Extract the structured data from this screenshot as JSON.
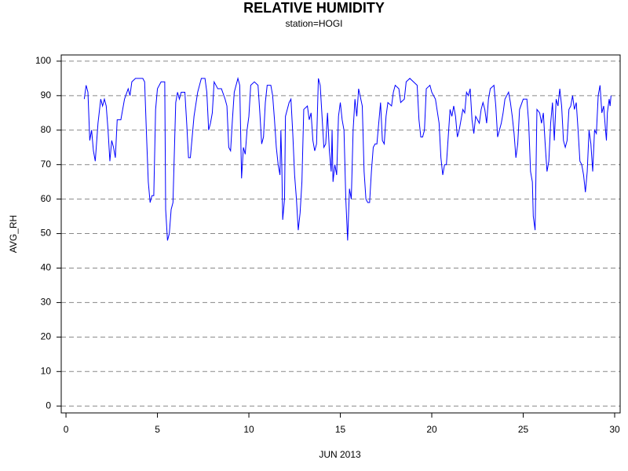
{
  "chart_data": {
    "type": "line",
    "title": "RELATIVE HUMIDITY",
    "subtitle": "station=HOGI",
    "x_label": "JUN 2013",
    "y_label": "AVG_RH",
    "x": [
      1.0,
      1.1,
      1.2,
      1.3,
      1.4,
      1.5,
      1.6,
      1.75,
      1.9,
      2.0,
      2.1,
      2.2,
      2.3,
      2.4,
      2.5,
      2.6,
      2.7,
      2.8,
      3.0,
      3.2,
      3.4,
      3.5,
      3.6,
      3.8,
      4.0,
      4.2,
      4.3,
      4.4,
      4.5,
      4.6,
      4.7,
      4.8,
      4.9,
      5.0,
      5.2,
      5.4,
      5.45,
      5.55,
      5.65,
      5.75,
      5.85,
      6.0,
      6.1,
      6.2,
      6.3,
      6.5,
      6.6,
      6.7,
      6.8,
      6.9,
      7.0,
      7.2,
      7.4,
      7.6,
      7.7,
      7.8,
      7.9,
      8.0,
      8.1,
      8.3,
      8.5,
      8.7,
      8.8,
      8.9,
      9.0,
      9.1,
      9.2,
      9.4,
      9.5,
      9.6,
      9.7,
      9.8,
      9.9,
      10.0,
      10.1,
      10.3,
      10.5,
      10.6,
      10.7,
      10.8,
      10.9,
      11.0,
      11.2,
      11.3,
      11.4,
      11.5,
      11.6,
      11.7,
      11.75,
      11.8,
      11.85,
      11.95,
      12.0,
      12.2,
      12.3,
      12.4,
      12.5,
      12.6,
      12.7,
      12.8,
      12.9,
      13.0,
      13.2,
      13.3,
      13.4,
      13.5,
      13.6,
      13.7,
      13.8,
      13.9,
      14.0,
      14.1,
      14.2,
      14.3,
      14.4,
      14.5,
      14.55,
      14.6,
      14.7,
      14.8,
      14.9,
      15.0,
      15.1,
      15.2,
      15.3,
      15.4,
      15.5,
      15.6,
      15.7,
      15.8,
      15.9,
      16.0,
      16.2,
      16.3,
      16.4,
      16.5,
      16.6,
      16.7,
      16.8,
      16.9,
      17.0,
      17.2,
      17.3,
      17.4,
      17.5,
      17.6,
      17.8,
      17.9,
      18.0,
      18.2,
      18.3,
      18.5,
      18.6,
      18.8,
      19.0,
      19.2,
      19.3,
      19.4,
      19.5,
      19.6,
      19.7,
      19.9,
      20.0,
      20.2,
      20.4,
      20.5,
      20.6,
      20.7,
      20.8,
      20.9,
      21.0,
      21.1,
      21.2,
      21.3,
      21.4,
      21.5,
      21.6,
      21.7,
      21.8,
      21.9,
      22.0,
      22.1,
      22.2,
      22.3,
      22.4,
      22.6,
      22.7,
      22.8,
      22.9,
      23.0,
      23.1,
      23.2,
      23.4,
      23.5,
      23.6,
      23.7,
      23.8,
      23.9,
      24.0,
      24.2,
      24.3,
      24.4,
      24.5,
      24.6,
      24.7,
      24.8,
      25.0,
      25.2,
      25.3,
      25.4,
      25.5,
      25.55,
      25.65,
      25.75,
      25.9,
      26.0,
      26.1,
      26.2,
      26.3,
      26.4,
      26.5,
      26.6,
      26.7,
      26.8,
      26.9,
      27.0,
      27.1,
      27.2,
      27.3,
      27.4,
      27.5,
      27.6,
      27.7,
      27.8,
      27.9,
      28.0,
      28.1,
      28.2,
      28.3,
      28.4,
      28.5,
      28.6,
      28.7,
      28.8,
      28.9,
      29.0,
      29.1,
      29.2,
      29.3,
      29.4,
      29.5,
      29.55,
      29.6,
      29.7,
      29.75,
      29.8
    ],
    "series": [
      {
        "name": "AVG_RH",
        "color": "#0000ff",
        "values": [
          89,
          93,
          91,
          77,
          80,
          74,
          71,
          82,
          89,
          87,
          89,
          87,
          80,
          71,
          77,
          75,
          72,
          83,
          83,
          89,
          92,
          90,
          94,
          95,
          95,
          95,
          94,
          79,
          65,
          59,
          61,
          61,
          86,
          92,
          94,
          94,
          57,
          48,
          50,
          57,
          59,
          88,
          91,
          89,
          91,
          91,
          82,
          72,
          72,
          78,
          84,
          91,
          95,
          95,
          91,
          80,
          82,
          85,
          94,
          92,
          92,
          89,
          87,
          75,
          74,
          83,
          91,
          95,
          93,
          66,
          75,
          73,
          80,
          84,
          93,
          94,
          93,
          85,
          76,
          78,
          88,
          93,
          93,
          90,
          83,
          75,
          70,
          67,
          80,
          70,
          54,
          60,
          84,
          88,
          89,
          79,
          67,
          60,
          51,
          56,
          65,
          86,
          87,
          83,
          85,
          77,
          74,
          76,
          95,
          93,
          84,
          75,
          76,
          85,
          74,
          68,
          80,
          65,
          70,
          67,
          84,
          88,
          83,
          80,
          60,
          48,
          63,
          60,
          80,
          89,
          84,
          92,
          87,
          68,
          60,
          59,
          59,
          68,
          75,
          76,
          76,
          88,
          77,
          76,
          84,
          88,
          87,
          91,
          93,
          92,
          88,
          89,
          94,
          95,
          94,
          93,
          83,
          78,
          78,
          80,
          92,
          93,
          91,
          89,
          82,
          72,
          67,
          70,
          70,
          78,
          86,
          84,
          87,
          84,
          78,
          80,
          83,
          86,
          85,
          91,
          90,
          92,
          83,
          79,
          84,
          82,
          86,
          88,
          86,
          82,
          89,
          92,
          93,
          87,
          78,
          80,
          82,
          85,
          89,
          91,
          88,
          84,
          79,
          72,
          76,
          86,
          89,
          89,
          82,
          68,
          65,
          55,
          51,
          86,
          85,
          82,
          85,
          76,
          68,
          71,
          82,
          88,
          77,
          89,
          87,
          92,
          87,
          77,
          75,
          77,
          86,
          87,
          90,
          86,
          88,
          80,
          71,
          70,
          67,
          62,
          68,
          80,
          76,
          68,
          80,
          79,
          90,
          93,
          85,
          87,
          80,
          77,
          85,
          89,
          87,
          90
        ]
      }
    ],
    "xlim": [
      -0.26,
      30.3
    ],
    "xticks": [
      0,
      5,
      10,
      15,
      20,
      25,
      30
    ],
    "ylim": [
      -2,
      101.8
    ],
    "yticks": [
      0,
      10,
      20,
      30,
      40,
      50,
      60,
      70,
      80,
      90,
      100
    ],
    "grid": true
  }
}
